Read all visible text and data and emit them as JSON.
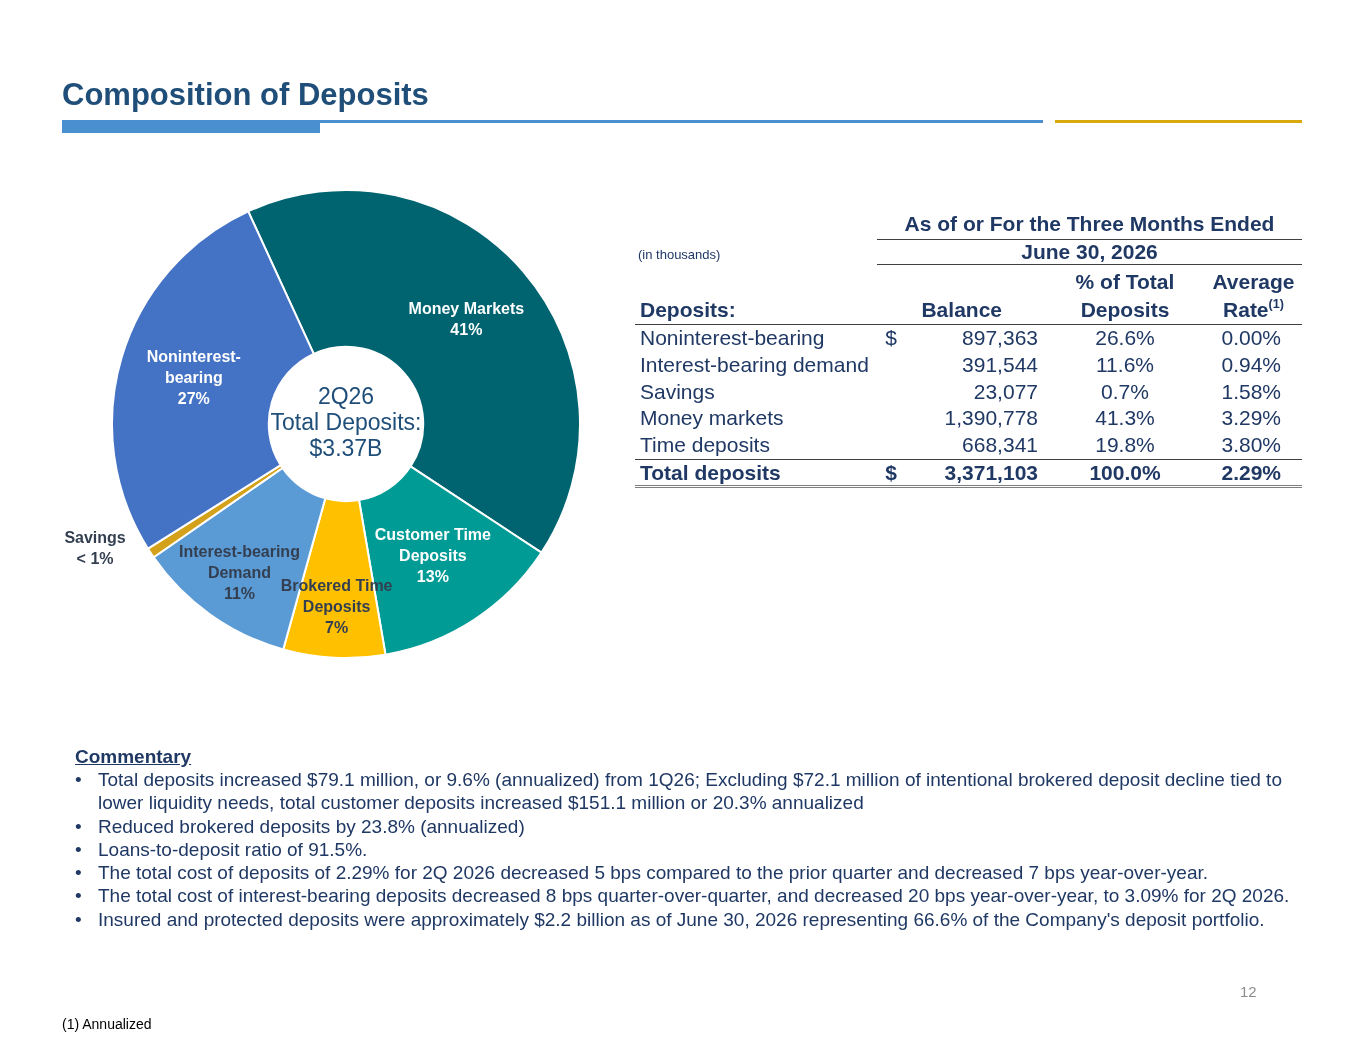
{
  "chart_data": [
    {
      "type": "donut",
      "title": "Composition of Deposits",
      "categories": [
        "Money Markets",
        "Customer Time Deposits",
        "Brokered Time Deposits",
        "Interest-bearing Demand",
        "Savings",
        "Noninterest-bearing"
      ],
      "values": [
        41,
        13,
        7,
        11,
        0.7,
        27
      ],
      "value_labels": [
        "41%",
        "13%",
        "7%",
        "11%",
        "< 1%",
        "27%"
      ],
      "colors": [
        "#006470",
        "#009b95",
        "#ffc000",
        "#5b9bd5",
        "#d4a21a",
        "#4472c4"
      ],
      "annotations": [
        "2Q26\nTotal Deposits:\n$3.37B"
      ]
    },
    {
      "type": "other",
      "title": "As of or For the Three Months Ended",
      "subtitle": "June 30, 2026",
      "annotations": [
        "(in thousands)",
        "Deposits:\t\tBalance\t% of Total Deposits\tAverage Rate$^{(1)}$",
        "Noninterest-bearing\t$\t897,363\t26.6%\t0.00%",
        "Interest-bearing demand\t\t391,544\t11.6%\t0.94%",
        "Savings\t\t23,077\t0.7%\t1.58%",
        "Money markets\t\t1,390,778\t41.3%\t3.29%",
        "Time deposits\t\t668,341\t19.8%\t3.80%",
        "Total deposits\t$\t3,371,103\t100.0%\t2.29%"
      ]
    },
    {
      "type": "other",
      "title": "Commentary",
      "annotations": [
        "• Total deposits increased $79.1 million, or 9.6% (annualized) from 1Q26; Excluding $72.1 million of intentional brokered deposit decline tied to lower liquidity needs, total customer deposits increased $151.1 million or 20.3% annualized",
        "• Reduced brokered deposits by 23.8% (annualized)",
        "• Loans-to-deposit ratio of 91.5%.",
        "• The total cost of deposits of 2.29% for 2Q 2026 decreased 5 bps compared to the prior quarter and decreased 7 bps year-over-year.",
        "• The total cost of interest-bearing deposits decreased 8 bps quarter-over-quarter, and decreased 20 bps year-over-year, to 3.09% for 2Q 2026.",
        "• Insured and protected deposits were approximately $2.2 billion as of June 30, 2026 representing 66.6% of the Company's deposit portfolio."
      ]
    },
    {
      "type": "other",
      "annotations": [
        "12",
        "(1) Annualized"
      ]
    }
  ]
}
